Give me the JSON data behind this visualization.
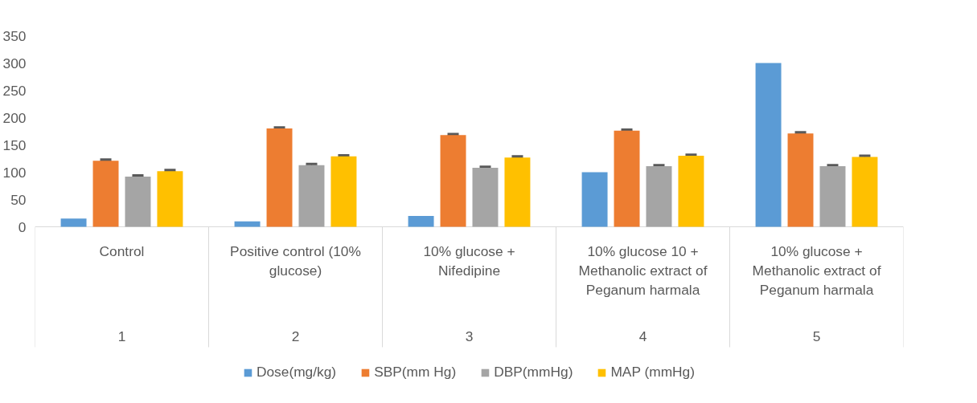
{
  "chart_data": {
    "type": "bar",
    "categories": [
      "Control",
      "Positive control (10% glucose)",
      "10% glucose + Nifedipine",
      "10% glucose 10 + Methanolic extract of Peganum harmala",
      "10% glucose + Methanolic extract of Peganum harmala"
    ],
    "annotations": [
      "1",
      "2",
      "3",
      "4",
      "5"
    ],
    "series": [
      {
        "name": "Dose(mg/kg)",
        "color": "#5b9bd5",
        "values": [
          15,
          10,
          20,
          100,
          300
        ]
      },
      {
        "name": "SBP(mm Hg)",
        "color": "#ed7d31",
        "values": [
          121,
          180,
          168,
          176,
          171
        ],
        "errors": [
          2,
          2,
          2,
          2,
          2
        ]
      },
      {
        "name": "DBP(mmHg)",
        "color": "#a5a5a5",
        "values": [
          92,
          113,
          108,
          111,
          111
        ],
        "errors": [
          2,
          2,
          2,
          2,
          2
        ]
      },
      {
        "name": "MAP (mmHg)",
        "color": "#ffc000",
        "values": [
          102,
          129,
          127,
          130,
          128
        ],
        "errors": [
          2,
          2,
          2,
          2,
          2
        ]
      }
    ],
    "ylim": [
      0,
      350
    ],
    "yticks": [
      0,
      50,
      100,
      150,
      200,
      250,
      300,
      350
    ],
    "grid": false,
    "legend": "bottom"
  }
}
